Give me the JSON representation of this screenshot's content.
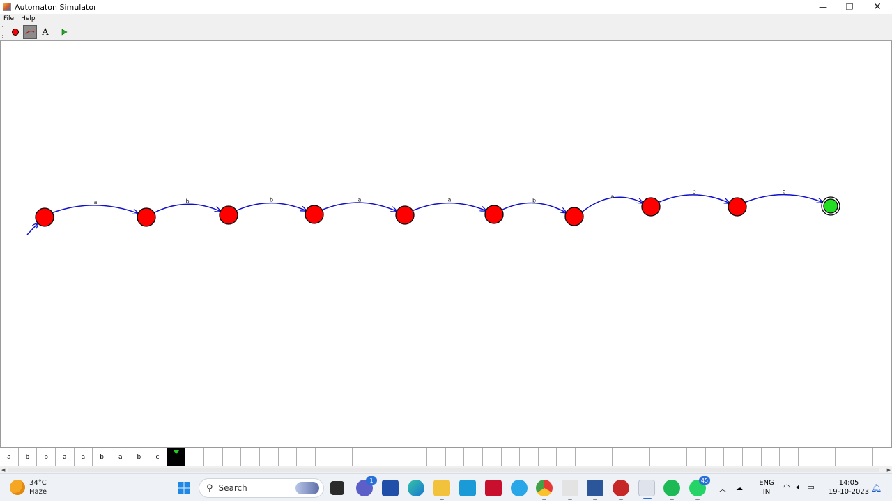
{
  "window": {
    "title": "Automaton Simulator",
    "controls": [
      "—",
      "❐",
      "✕"
    ]
  },
  "menu": [
    "File",
    "Help"
  ],
  "toolbar": {
    "text_tool_label": "A",
    "tools": [
      "add-state-tool",
      "add-transition-tool",
      "add-text-tool",
      "run-tool"
    ]
  },
  "automaton": {
    "initial_state": 0,
    "accepting_state": 9,
    "states": [
      {
        "id": "q0",
        "accepting": false
      },
      {
        "id": "q1",
        "accepting": false
      },
      {
        "id": "q2",
        "accepting": false
      },
      {
        "id": "q3",
        "accepting": false
      },
      {
        "id": "q4",
        "accepting": false
      },
      {
        "id": "q5",
        "accepting": false
      },
      {
        "id": "q6",
        "accepting": false
      },
      {
        "id": "q7",
        "accepting": false
      },
      {
        "id": "q8",
        "accepting": false
      },
      {
        "id": "q9",
        "accepting": true
      }
    ],
    "transitions": [
      {
        "from": 0,
        "to": 1,
        "label": "a"
      },
      {
        "from": 1,
        "to": 2,
        "label": "b"
      },
      {
        "from": 2,
        "to": 3,
        "label": "b"
      },
      {
        "from": 3,
        "to": 4,
        "label": "a"
      },
      {
        "from": 4,
        "to": 5,
        "label": "a"
      },
      {
        "from": 5,
        "to": 6,
        "label": "b"
      },
      {
        "from": 6,
        "to": 7,
        "label": "a"
      },
      {
        "from": 7,
        "to": 8,
        "label": "b"
      },
      {
        "from": 8,
        "to": 9,
        "label": "c"
      }
    ],
    "colors": {
      "state_fill": "#ff0000",
      "accept_fill": "#22dd22",
      "transition": "#1010c8"
    }
  },
  "tape": {
    "cells": [
      "a",
      "b",
      "b",
      "a",
      "a",
      "b",
      "a",
      "b",
      "c"
    ],
    "head_index": 9,
    "total_cells": 48
  },
  "taskbar": {
    "weather_temp": "34°C",
    "weather_desc": "Haze",
    "search_placeholder": "Search",
    "teams_badge": "1",
    "whatsapp_badge": "45",
    "lang_line1": "ENG",
    "lang_line2": "IN",
    "time": "14:05",
    "date": "19-10-2023"
  }
}
